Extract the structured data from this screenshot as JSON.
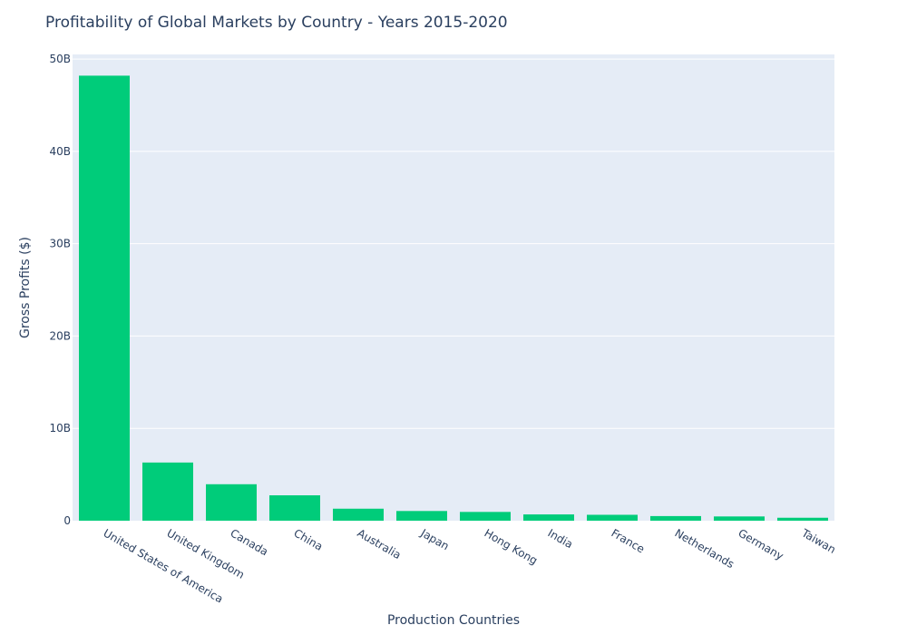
{
  "chart_data": {
    "type": "bar",
    "title": "Profitability of Global Markets by Country - Years 2015-2020",
    "xlabel": "Production Countries",
    "ylabel": "Gross Profits ($)",
    "categories": [
      "United States of America",
      "United Kingdom",
      "Canada",
      "China",
      "Australia",
      "Japan",
      "Hong Kong",
      "India",
      "France",
      "Netherlands",
      "Germany",
      "Taiwan"
    ],
    "values": [
      48200000000,
      6300000000,
      3950000000,
      2750000000,
      1300000000,
      1050000000,
      950000000,
      680000000,
      640000000,
      500000000,
      460000000,
      320000000
    ],
    "ylim": [
      0,
      50500000000
    ],
    "yticks": [
      0,
      10000000000,
      20000000000,
      30000000000,
      40000000000,
      50000000000
    ],
    "ytick_labels": [
      "0",
      "10B",
      "20B",
      "30B",
      "40B",
      "50B"
    ],
    "grid": true,
    "colors": {
      "bar": "#00cc7a",
      "plot_bg": "#e5ecf6",
      "grid": "#ffffff",
      "text": "#2a3f5f"
    }
  }
}
